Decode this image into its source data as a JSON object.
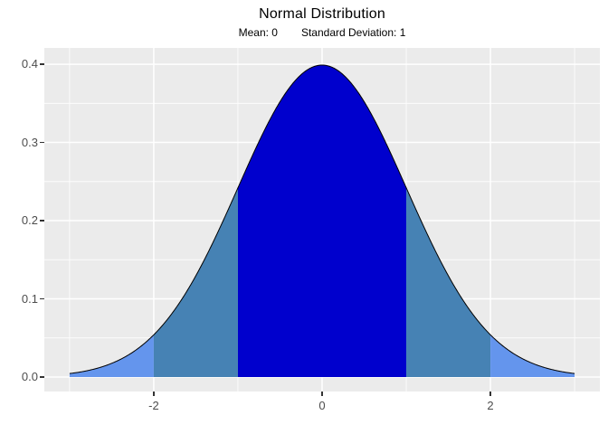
{
  "title": "Normal Distribution",
  "subtitle": {
    "mean_label": "Mean: 0",
    "sd_label": "Standard Deviation: 1"
  },
  "chart_data": {
    "type": "area",
    "title": "Normal Distribution",
    "subtitle_mean": "Mean: 0",
    "subtitle_sd": "Standard Deviation: 1",
    "distribution": {
      "name": "normal",
      "mean": 0,
      "sd": 1
    },
    "x_range": [
      -3,
      3
    ],
    "curve_points": [
      [
        -3.0,
        0.0044
      ],
      [
        -2.5,
        0.0175
      ],
      [
        -2.0,
        0.054
      ],
      [
        -1.5,
        0.1295
      ],
      [
        -1.0,
        0.242
      ],
      [
        -0.5,
        0.3521
      ],
      [
        0.0,
        0.3989
      ],
      [
        0.5,
        0.3521
      ],
      [
        1.0,
        0.242
      ],
      [
        1.5,
        0.1295
      ],
      [
        2.0,
        0.054
      ],
      [
        2.5,
        0.0175
      ],
      [
        3.0,
        0.0044
      ]
    ],
    "regions": [
      {
        "name": "tail-left-2-to-3-sd",
        "from": -3,
        "to": -2,
        "fill": "#6495ED"
      },
      {
        "name": "band-left-1-to-2-sd",
        "from": -2,
        "to": -1,
        "fill": "#4682B4"
      },
      {
        "name": "center-within-1-sd",
        "from": -1,
        "to": 1,
        "fill": "#0000CD"
      },
      {
        "name": "band-right-1-to-2-sd",
        "from": 1,
        "to": 2,
        "fill": "#4682B4"
      },
      {
        "name": "tail-right-2-to-3-sd",
        "from": 2,
        "to": 3,
        "fill": "#6495ED"
      }
    ],
    "line_color": "#000000",
    "x_axis": {
      "ticks": [
        {
          "value": -2,
          "label": "-2"
        },
        {
          "value": 0,
          "label": "0"
        },
        {
          "value": 2,
          "label": "2"
        }
      ],
      "minor": [
        -3,
        -1,
        1,
        3
      ]
    },
    "y_axis": {
      "ticks": [
        {
          "value": 0.0,
          "label": "0.0"
        },
        {
          "value": 0.1,
          "label": "0.1"
        },
        {
          "value": 0.2,
          "label": "0.2"
        },
        {
          "value": 0.3,
          "label": "0.3"
        },
        {
          "value": 0.4,
          "label": "0.4"
        }
      ],
      "minor": [
        0.05,
        0.15,
        0.25,
        0.35
      ]
    },
    "xlim": [
      -3.3,
      3.3
    ],
    "ylim": [
      -0.0185,
      0.4209
    ],
    "grid": true,
    "legend": "none",
    "panel_bg": "#EBEBEB",
    "grid_color": "#FFFFFF",
    "tick_color": "#333333",
    "label_color": "#4D4D4D"
  }
}
